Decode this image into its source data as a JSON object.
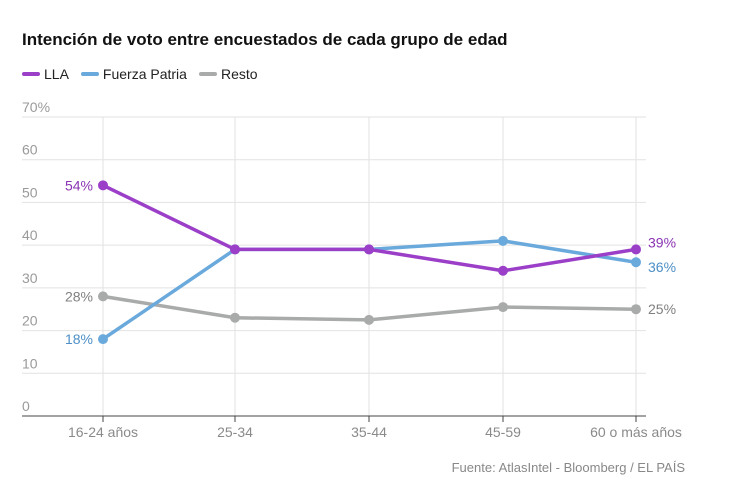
{
  "chart_data": {
    "type": "line",
    "title": "Intención de voto entre encuestados de cada grupo de edad",
    "categories": [
      "16-24 años",
      "25-34",
      "35-44",
      "45-59",
      "60 o más años"
    ],
    "ylim": [
      0,
      70
    ],
    "yticks": [
      "0",
      "10",
      "20",
      "30",
      "40",
      "50",
      "60",
      "70%"
    ],
    "grid": true,
    "legend_position": "top-left",
    "series": [
      {
        "name": "LLA",
        "color": "#9b3fc8",
        "values": [
          54,
          39,
          39,
          34,
          39
        ],
        "labels": {
          "first": "54%",
          "last": "39%"
        }
      },
      {
        "name": "Fuerza Patria",
        "color": "#6aa9dc",
        "values": [
          18,
          39,
          39,
          41,
          36
        ],
        "labels": {
          "first": "18%",
          "last": "36%"
        }
      },
      {
        "name": "Resto",
        "color": "#a9aaaa",
        "values": [
          28,
          23,
          22.5,
          25.5,
          25
        ],
        "labels": {
          "first": "28%",
          "last": "25%"
        }
      }
    ],
    "source": "Fuente: AtlasIntel - Bloomberg / EL PAÍS"
  }
}
